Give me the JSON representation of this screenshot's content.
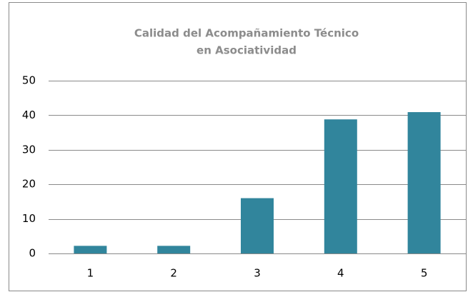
{
  "chart_data": {
    "type": "bar",
    "title": [
      "Calidad del Acompañamiento Técnico",
      "en Asociatividad"
    ],
    "categories": [
      "1",
      "2",
      "3",
      "4",
      "5"
    ],
    "values": [
      2.2,
      2.2,
      16,
      38.8,
      40.9
    ],
    "color": "#31859c",
    "ylim": [
      0,
      50
    ],
    "yticks": [
      0,
      10,
      20,
      30,
      40,
      50
    ],
    "grid": true
  }
}
